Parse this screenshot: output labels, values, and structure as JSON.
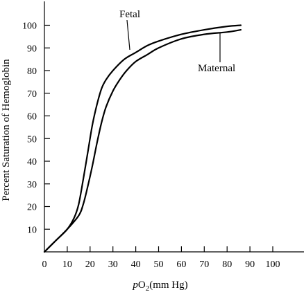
{
  "chart_data": {
    "type": "line",
    "title": "",
    "xlabel": {
      "italic": "p",
      "base": "O",
      "sub": "2",
      "rest": "(mm Hg)"
    },
    "ylabel": "Percent Saturation of Hemoglobin",
    "xlim": [
      0,
      100
    ],
    "ylim": [
      0,
      100
    ],
    "xticks": [
      "0",
      "10",
      "20",
      "30",
      "40",
      "50",
      "60",
      "70",
      "80",
      "90",
      "100"
    ],
    "yticks": [
      "10",
      "20",
      "30",
      "40",
      "50",
      "60",
      "70",
      "80",
      "90",
      "100"
    ],
    "grid": false,
    "series": [
      {
        "name": "Fetal",
        "x": [
          0,
          5,
          10,
          13,
          15,
          17,
          19,
          21,
          23,
          25,
          27,
          30,
          35,
          40,
          45,
          50,
          60,
          70,
          80,
          86
        ],
        "y": [
          0,
          5,
          10,
          15,
          21,
          32,
          44,
          56,
          65,
          72,
          76,
          80,
          85,
          88,
          91,
          93,
          96,
          98,
          99.5,
          100
        ]
      },
      {
        "name": "Maternal",
        "x": [
          0,
          5,
          10,
          15,
          17,
          19,
          21,
          23,
          25,
          27,
          30,
          33,
          36,
          40,
          45,
          50,
          60,
          70,
          80,
          86
        ],
        "y": [
          0,
          5,
          10,
          16,
          21,
          29,
          38,
          48,
          57,
          64,
          71,
          76,
          80,
          84,
          87,
          90,
          94,
          96,
          97,
          98
        ]
      }
    ]
  }
}
